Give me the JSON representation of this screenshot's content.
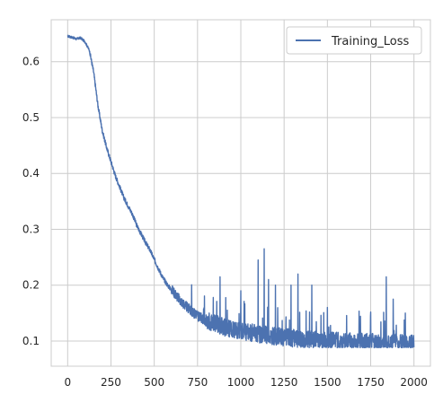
{
  "chart_data": {
    "type": "line",
    "title": "",
    "xlabel": "",
    "ylabel": "",
    "xlim": [
      -95,
      2095
    ],
    "ylim": [
      0.055,
      0.675
    ],
    "xticks": [
      0,
      250,
      500,
      750,
      1000,
      1250,
      1500,
      1750,
      2000
    ],
    "xtick_labels": [
      "0",
      "250",
      "500",
      "750",
      "1000",
      "1250",
      "1500",
      "1750",
      "2000"
    ],
    "yticks": [
      0.1,
      0.2,
      0.3,
      0.4,
      0.5,
      0.6
    ],
    "ytick_labels": [
      "0.1",
      "0.2",
      "0.3",
      "0.4",
      "0.5",
      "0.6"
    ],
    "grid": true,
    "legend": {
      "placement": "top-right",
      "entries": [
        "Training_Loss"
      ]
    },
    "series": [
      {
        "name": "Training_Loss",
        "color": "#4c72b0",
        "x": [
          0,
          25,
          50,
          75,
          100,
          125,
          150,
          175,
          200,
          225,
          250,
          275,
          300,
          325,
          350,
          375,
          400,
          425,
          450,
          475,
          500,
          525,
          550,
          575,
          600,
          625,
          650,
          675,
          700,
          725,
          750,
          775,
          800,
          825,
          850,
          875,
          900,
          925,
          950,
          975,
          1000,
          1025,
          1050,
          1075,
          1100,
          1125,
          1150,
          1175,
          1200,
          1225,
          1250,
          1275,
          1300,
          1325,
          1350,
          1375,
          1400,
          1425,
          1450,
          1475,
          1500,
          1525,
          1550,
          1575,
          1600,
          1625,
          1650,
          1675,
          1700,
          1725,
          1750,
          1775,
          1800,
          1825,
          1850,
          1875,
          1900,
          1925,
          1950,
          1975,
          2000
        ],
        "y": [
          0.645,
          0.643,
          0.64,
          0.642,
          0.635,
          0.62,
          0.58,
          0.52,
          0.475,
          0.445,
          0.42,
          0.395,
          0.375,
          0.355,
          0.34,
          0.325,
          0.305,
          0.29,
          0.275,
          0.262,
          0.245,
          0.228,
          0.212,
          0.2,
          0.19,
          0.18,
          0.17,
          0.162,
          0.155,
          0.148,
          0.142,
          0.138,
          0.132,
          0.13,
          0.127,
          0.124,
          0.12,
          0.118,
          0.116,
          0.114,
          0.113,
          0.112,
          0.111,
          0.11,
          0.108,
          0.107,
          0.106,
          0.105,
          0.104,
          0.103,
          0.102,
          0.101,
          0.1,
          0.1,
          0.099,
          0.099,
          0.098,
          0.098,
          0.097,
          0.097,
          0.096,
          0.096,
          0.095,
          0.095,
          0.095,
          0.094,
          0.094,
          0.094,
          0.093,
          0.093,
          0.093,
          0.093,
          0.092,
          0.092,
          0.092,
          0.092,
          0.092,
          0.091,
          0.091,
          0.091,
          0.091
        ]
      }
    ],
    "spikes": [
      {
        "x": 880,
        "y": 0.215
      },
      {
        "x": 1000,
        "y": 0.19
      },
      {
        "x": 1100,
        "y": 0.245
      },
      {
        "x": 1135,
        "y": 0.265
      },
      {
        "x": 1160,
        "y": 0.21
      },
      {
        "x": 1200,
        "y": 0.2
      },
      {
        "x": 1290,
        "y": 0.2
      },
      {
        "x": 1330,
        "y": 0.22
      },
      {
        "x": 1410,
        "y": 0.2
      },
      {
        "x": 1500,
        "y": 0.16
      },
      {
        "x": 1840,
        "y": 0.215
      },
      {
        "x": 1880,
        "y": 0.175
      },
      {
        "x": 1950,
        "y": 0.15
      }
    ]
  }
}
